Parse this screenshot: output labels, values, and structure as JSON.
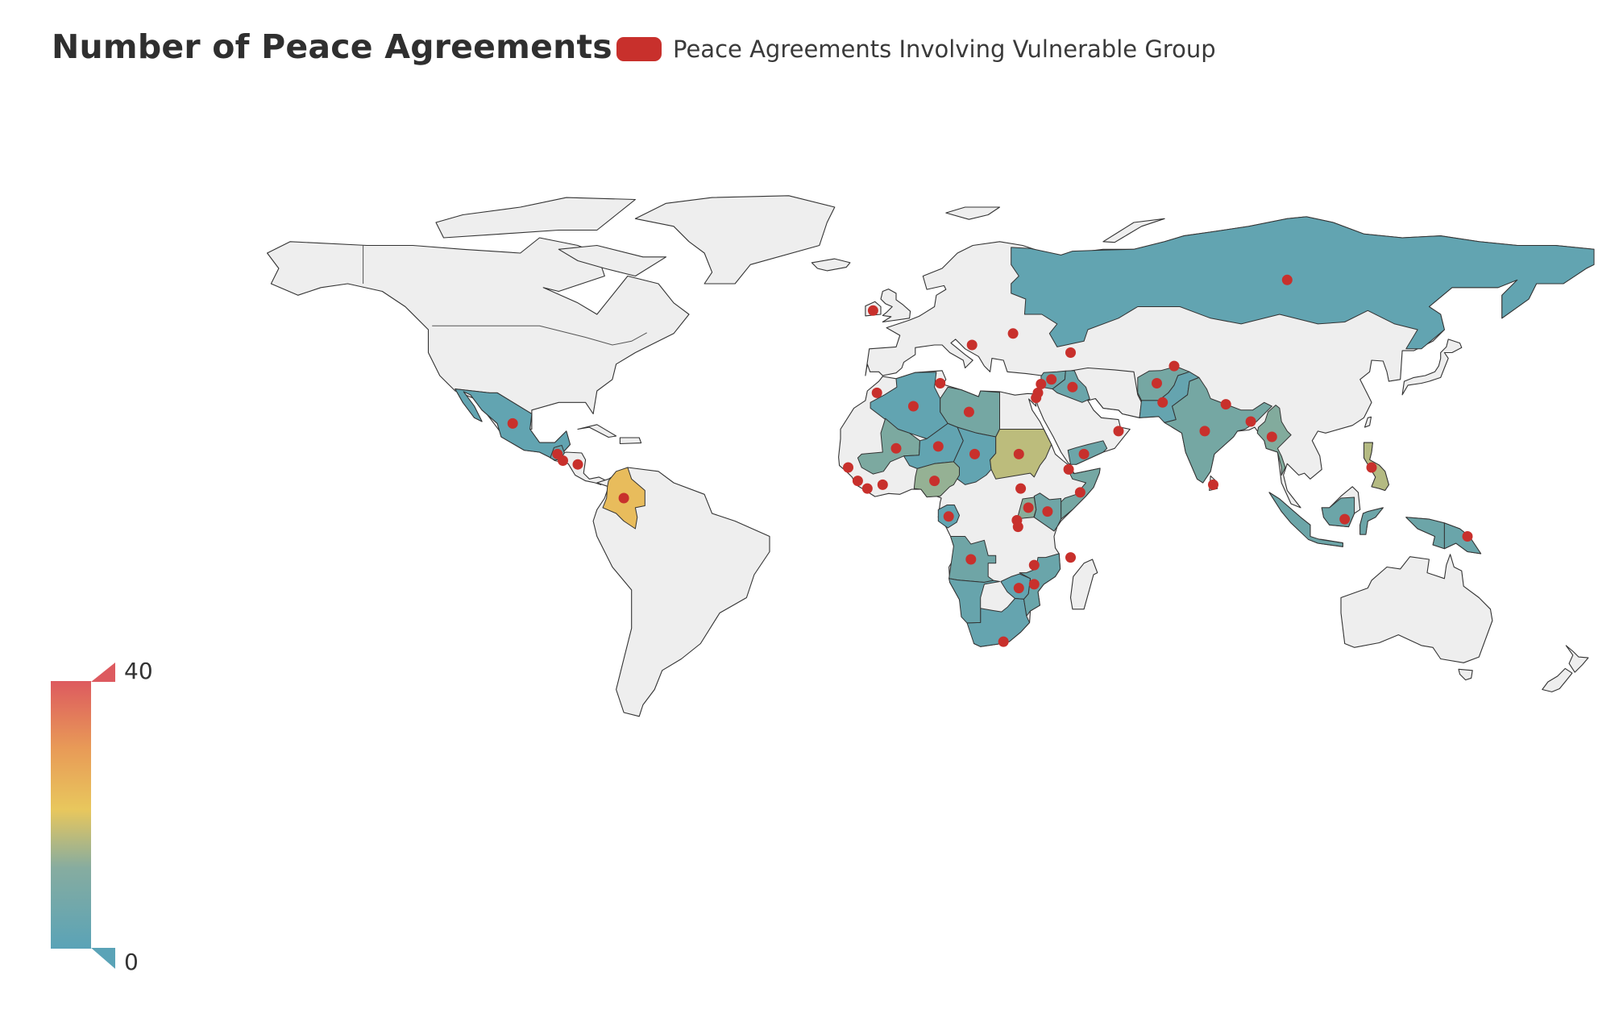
{
  "title": "Number of Peace Agreements",
  "legend": {
    "label": "Peace Agreements Involving Vulnerable Group",
    "color": "#c8302c"
  },
  "visual_map": {
    "max_label": "40",
    "min_label": "0",
    "max": 40,
    "min": 0,
    "colors": [
      "#5aa3b7",
      "#6fa5a6",
      "#a2b58e",
      "#e8c75d",
      "#e89a57",
      "#dd5a5f"
    ]
  },
  "map_colors": {
    "ocean": "#ffffff",
    "land_default": "#eeeeee",
    "border": "#333333",
    "marker": "#c8302c"
  },
  "countries": [
    {
      "name": "Russia",
      "value": 3
    },
    {
      "name": "Mexico",
      "value": 3
    },
    {
      "name": "Guatemala",
      "value": 5
    },
    {
      "name": "Colombia",
      "value": 26
    },
    {
      "name": "Algeria",
      "value": 3
    },
    {
      "name": "Libya",
      "value": 9
    },
    {
      "name": "Mali",
      "value": 10
    },
    {
      "name": "Niger",
      "value": 3
    },
    {
      "name": "Chad",
      "value": 3
    },
    {
      "name": "Sudan",
      "value": 19
    },
    {
      "name": "Nigeria",
      "value": 14
    },
    {
      "name": "Afghanistan",
      "value": 9
    },
    {
      "name": "Pakistan",
      "value": 4
    },
    {
      "name": "India",
      "value": 9
    },
    {
      "name": "Myanmar",
      "value": 11
    },
    {
      "name": "Philippines",
      "value": 18
    },
    {
      "name": "Indonesia",
      "value": 7
    },
    {
      "name": "Papua New Guinea",
      "value": 6
    },
    {
      "name": "Yemen",
      "value": 7
    },
    {
      "name": "Somalia",
      "value": 9
    },
    {
      "name": "Kenya",
      "value": 8
    },
    {
      "name": "Uganda",
      "value": 12
    },
    {
      "name": "Angola",
      "value": 8
    },
    {
      "name": "Mozambique",
      "value": 6
    },
    {
      "name": "Zimbabwe",
      "value": 3
    },
    {
      "name": "South Africa",
      "value": 4
    },
    {
      "name": "Namibia",
      "value": 5
    },
    {
      "name": "Syria",
      "value": 7
    },
    {
      "name": "Iraq",
      "value": 6
    },
    {
      "name": "Gabon",
      "value": 3
    }
  ],
  "markers": [
    {
      "name": "Russia",
      "lon": 100,
      "lat": 61
    },
    {
      "name": "Ireland",
      "lon": -8,
      "lat": 53
    },
    {
      "name": "Bosnia",
      "lon": 17.8,
      "lat": 44
    },
    {
      "name": "Moldova",
      "lon": 28.5,
      "lat": 47
    },
    {
      "name": "Georgia",
      "lon": 43.5,
      "lat": 42
    },
    {
      "name": "Mexico",
      "lon": -102,
      "lat": 23.5
    },
    {
      "name": "Guatemala",
      "lon": -90.3,
      "lat": 15.5
    },
    {
      "name": "El Salvador",
      "lon": -88.9,
      "lat": 13.8
    },
    {
      "name": "Nicaragua",
      "lon": -85,
      "lat": 12.8
    },
    {
      "name": "Colombia",
      "lon": -73,
      "lat": 4
    },
    {
      "name": "Morocco",
      "lon": -7,
      "lat": 31.5
    },
    {
      "name": "Algeria",
      "lon": 2.5,
      "lat": 28
    },
    {
      "name": "Tunisia",
      "lon": 9.5,
      "lat": 34
    },
    {
      "name": "Libya",
      "lon": 17,
      "lat": 26.5
    },
    {
      "name": "Lebanon",
      "lon": 35.8,
      "lat": 33.8
    },
    {
      "name": "Syria",
      "lon": 38.5,
      "lat": 35
    },
    {
      "name": "Israel",
      "lon": 35,
      "lat": 31.5
    },
    {
      "name": "Palestine",
      "lon": 34.5,
      "lat": 30.2
    },
    {
      "name": "Iraq",
      "lon": 44,
      "lat": 33
    },
    {
      "name": "Mali",
      "lon": -2,
      "lat": 17
    },
    {
      "name": "Niger",
      "lon": 9,
      "lat": 17.5
    },
    {
      "name": "Chad",
      "lon": 18.5,
      "lat": 15.5
    },
    {
      "name": "Sudan",
      "lon": 30,
      "lat": 15.5
    },
    {
      "name": "Yemen",
      "lon": 47,
      "lat": 15.5
    },
    {
      "name": "Oman",
      "lon": 56,
      "lat": 21.5
    },
    {
      "name": "Senegal",
      "lon": -14.5,
      "lat": 12
    },
    {
      "name": "Sierra Leone",
      "lon": -12,
      "lat": 8.5
    },
    {
      "name": "Liberia",
      "lon": -9.5,
      "lat": 6.5
    },
    {
      "name": "Cote d'Ivoire",
      "lon": -5.5,
      "lat": 7.5
    },
    {
      "name": "Nigeria",
      "lon": 8,
      "lat": 8.5
    },
    {
      "name": "Djibouti",
      "lon": 43,
      "lat": 11.5
    },
    {
      "name": "South Sudan",
      "lon": 30.5,
      "lat": 6.5
    },
    {
      "name": "Uganda",
      "lon": 32.5,
      "lat": 1.5
    },
    {
      "name": "Kenya",
      "lon": 37.5,
      "lat": 0.5
    },
    {
      "name": "Rwanda",
      "lon": 29.5,
      "lat": -1.8
    },
    {
      "name": "Burundi",
      "lon": 29.8,
      "lat": -3.5
    },
    {
      "name": "Somalia",
      "lon": 46,
      "lat": 5.5
    },
    {
      "name": "Gabon",
      "lon": 11.7,
      "lat": -0.8
    },
    {
      "name": "Angola",
      "lon": 17.5,
      "lat": -12
    },
    {
      "name": "Comoros",
      "lon": 43.5,
      "lat": -11.5
    },
    {
      "name": "Malawi",
      "lon": 34,
      "lat": -13.5
    },
    {
      "name": "Zimbabwe",
      "lon": 30,
      "lat": -19.5
    },
    {
      "name": "Mozambique",
      "lon": 34,
      "lat": -18.5
    },
    {
      "name": "South Africa",
      "lon": 26,
      "lat": -33.5
    },
    {
      "name": "Afghanistan",
      "lon": 66,
      "lat": 34
    },
    {
      "name": "Tajikistan",
      "lon": 70.5,
      "lat": 38.5
    },
    {
      "name": "Pakistan",
      "lon": 67.5,
      "lat": 29
    },
    {
      "name": "Nepal",
      "lon": 84,
      "lat": 28.5
    },
    {
      "name": "India",
      "lon": 78.5,
      "lat": 21.5
    },
    {
      "name": "Bangladesh",
      "lon": 90.5,
      "lat": 24
    },
    {
      "name": "Myanmar",
      "lon": 96,
      "lat": 20
    },
    {
      "name": "Sri Lanka",
      "lon": 80.7,
      "lat": 7.5
    },
    {
      "name": "Philippines",
      "lon": 122,
      "lat": 12
    },
    {
      "name": "Indonesia",
      "lon": 115,
      "lat": -1.5
    },
    {
      "name": "Papua New Guinea",
      "lon": 147,
      "lat": -6
    }
  ]
}
